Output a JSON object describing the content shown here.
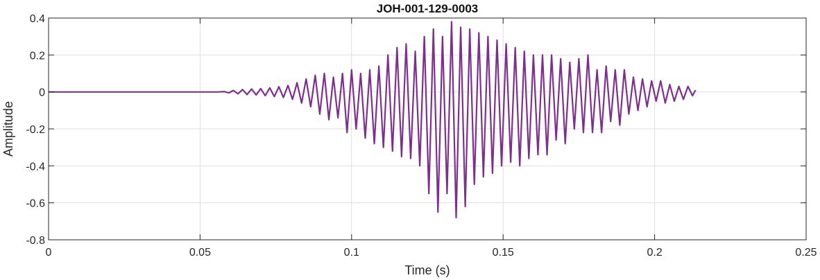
{
  "chart_data": {
    "type": "line",
    "title": "JOH-001-129-0003",
    "xlabel": "Time (s)",
    "ylabel": "Amplitude",
    "xlim": [
      0,
      0.25
    ],
    "ylim": [
      -0.8,
      0.4
    ],
    "xticks": [
      0,
      0.05,
      0.1,
      0.15,
      0.2,
      0.25
    ],
    "xtick_labels": [
      "0",
      "0.05",
      "0.1",
      "0.15",
      "0.2",
      "0.25"
    ],
    "yticks": [
      -0.8,
      -0.6,
      -0.4,
      -0.2,
      0,
      0.2,
      0.4
    ],
    "ytick_labels": [
      "-0.8",
      "-0.6",
      "-0.4",
      "-0.2",
      "0",
      "0.2",
      "0.4"
    ],
    "grid": true,
    "series": [
      {
        "color": "#7E2F8E",
        "x": [
          0,
          0.02,
          0.04,
          0.056,
          0.058,
          0.0595,
          0.061,
          0.0625,
          0.064,
          0.0655,
          0.067,
          0.0685,
          0.07,
          0.0715,
          0.073,
          0.0745,
          0.076,
          0.0775,
          0.079,
          0.0805,
          0.082,
          0.0835,
          0.085,
          0.0865,
          0.088,
          0.0895,
          0.091,
          0.0925,
          0.094,
          0.0955,
          0.097,
          0.0985,
          0.1,
          0.1015,
          0.103,
          0.1045,
          0.106,
          0.1075,
          0.109,
          0.1105,
          0.112,
          0.1135,
          0.115,
          0.1165,
          0.118,
          0.1195,
          0.121,
          0.1225,
          0.124,
          0.1255,
          0.127,
          0.1285,
          0.13,
          0.1315,
          0.133,
          0.1345,
          0.136,
          0.1375,
          0.139,
          0.1405,
          0.142,
          0.1435,
          0.145,
          0.1465,
          0.148,
          0.1495,
          0.151,
          0.1525,
          0.154,
          0.1555,
          0.157,
          0.1585,
          0.16,
          0.1615,
          0.163,
          0.1645,
          0.166,
          0.1675,
          0.169,
          0.1705,
          0.172,
          0.1735,
          0.175,
          0.1765,
          0.178,
          0.1795,
          0.181,
          0.1825,
          0.184,
          0.1855,
          0.187,
          0.1885,
          0.19,
          0.1915,
          0.193,
          0.1945,
          0.196,
          0.1975,
          0.199,
          0.2005,
          0.202,
          0.2035,
          0.205,
          0.2065,
          0.208,
          0.2095,
          0.211,
          0.2125,
          0.2135
        ],
        "y": [
          0,
          0,
          0,
          0,
          0.002,
          -0.005,
          0.008,
          -0.01,
          0.013,
          -0.014,
          0.016,
          -0.016,
          0.018,
          -0.02,
          0.022,
          -0.025,
          0.028,
          -0.03,
          0.035,
          -0.04,
          0.05,
          -0.06,
          0.07,
          -0.08,
          0.09,
          -0.12,
          0.1,
          -0.15,
          0.08,
          -0.14,
          0.1,
          -0.22,
          0.12,
          -0.2,
          0.1,
          -0.25,
          0.12,
          -0.28,
          0.14,
          -0.3,
          0.2,
          -0.32,
          0.24,
          -0.35,
          0.26,
          -0.36,
          0.22,
          -0.4,
          0.3,
          -0.55,
          0.34,
          -0.65,
          0.3,
          -0.55,
          0.38,
          -0.68,
          0.35,
          -0.62,
          0.34,
          -0.5,
          0.32,
          -0.46,
          0.3,
          -0.44,
          0.28,
          -0.4,
          0.26,
          -0.38,
          0.24,
          -0.4,
          0.22,
          -0.36,
          0.2,
          -0.34,
          0.2,
          -0.34,
          0.2,
          -0.26,
          0.18,
          -0.28,
          0.16,
          -0.2,
          0.18,
          -0.22,
          0.2,
          -0.22,
          0.12,
          -0.22,
          0.14,
          -0.16,
          0.12,
          -0.18,
          0.12,
          -0.12,
          0.08,
          -0.1,
          0.07,
          -0.08,
          0.06,
          -0.05,
          0.06,
          -0.06,
          0.04,
          -0.05,
          0.03,
          -0.04,
          0.03,
          -0.02,
          0.01
        ]
      }
    ]
  }
}
